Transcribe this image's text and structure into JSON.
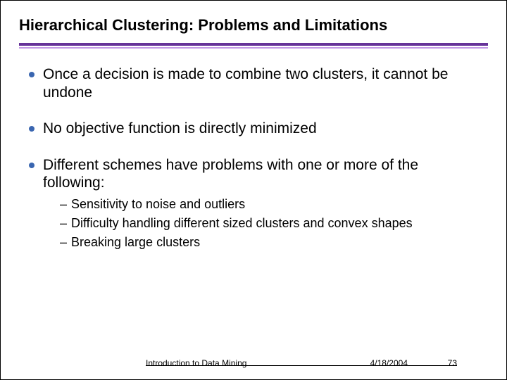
{
  "title": "Hierarchical Clustering:  Problems and Limitations",
  "rule_color_thick": "#663399",
  "rule_color_thin": "#c49ae6",
  "bullet_color": "#3a66b0",
  "bullets": [
    {
      "text": "Once a decision is made to combine two clusters, it cannot be undone"
    },
    {
      "text": "No objective function is directly minimized"
    },
    {
      "text": "Different schemes have problems with one or more of the following:",
      "sub": [
        "Sensitivity to noise and outliers",
        "Difficulty handling different sized clusters and convex shapes",
        "Breaking large clusters"
      ]
    }
  ],
  "footer": {
    "course": "Introduction to Data Mining",
    "date": "4/18/2004",
    "page": "73"
  }
}
